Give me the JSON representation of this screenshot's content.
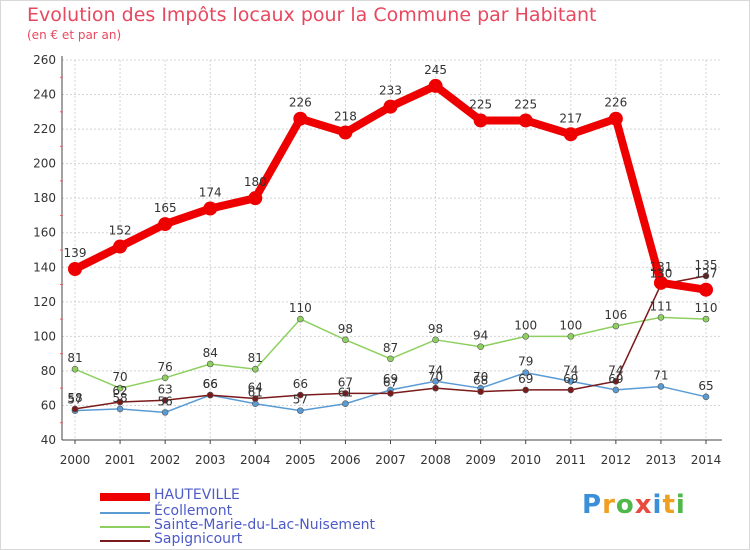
{
  "logo_text": "Proxiti",
  "chart_data": {
    "type": "line",
    "title": "Evolution des Impôts locaux pour la Commune par Habitant",
    "subtitle": "(en € et par an)",
    "xlabel": "",
    "ylabel": "",
    "x": [
      "2000",
      "2001",
      "2002",
      "2003",
      "2004",
      "2005",
      "2006",
      "2007",
      "2008",
      "2009",
      "2010",
      "2011",
      "2012",
      "2013",
      "2014"
    ],
    "yticks": [
      40,
      60,
      80,
      100,
      120,
      140,
      160,
      180,
      200,
      220,
      240,
      260
    ],
    "ylim": [
      40,
      260
    ],
    "legend_position": "bottom-left",
    "series": [
      {
        "name": "HAUTEVILLE",
        "color": "#ee0000",
        "values": [
          139,
          152,
          165,
          174,
          180,
          226,
          218,
          233,
          245,
          225,
          225,
          217,
          226,
          131,
          127
        ]
      },
      {
        "name": "Écollemont",
        "color": "#5a9bd4",
        "values": [
          57,
          58,
          56,
          66,
          61,
          57,
          61,
          69,
          74,
          70,
          79,
          74,
          69,
          71,
          65
        ]
      },
      {
        "name": "Sainte-Marie-du-Lac-Nuisement",
        "color": "#8ed060",
        "values": [
          81,
          70,
          76,
          84,
          81,
          110,
          98,
          87,
          98,
          94,
          100,
          100,
          106,
          111,
          110
        ]
      },
      {
        "name": "Sapignicourt",
        "color": "#7a1a1a",
        "values": [
          58,
          62,
          63,
          66,
          64,
          66,
          67,
          67,
          70,
          68,
          69,
          69,
          74,
          130,
          135
        ]
      }
    ]
  }
}
